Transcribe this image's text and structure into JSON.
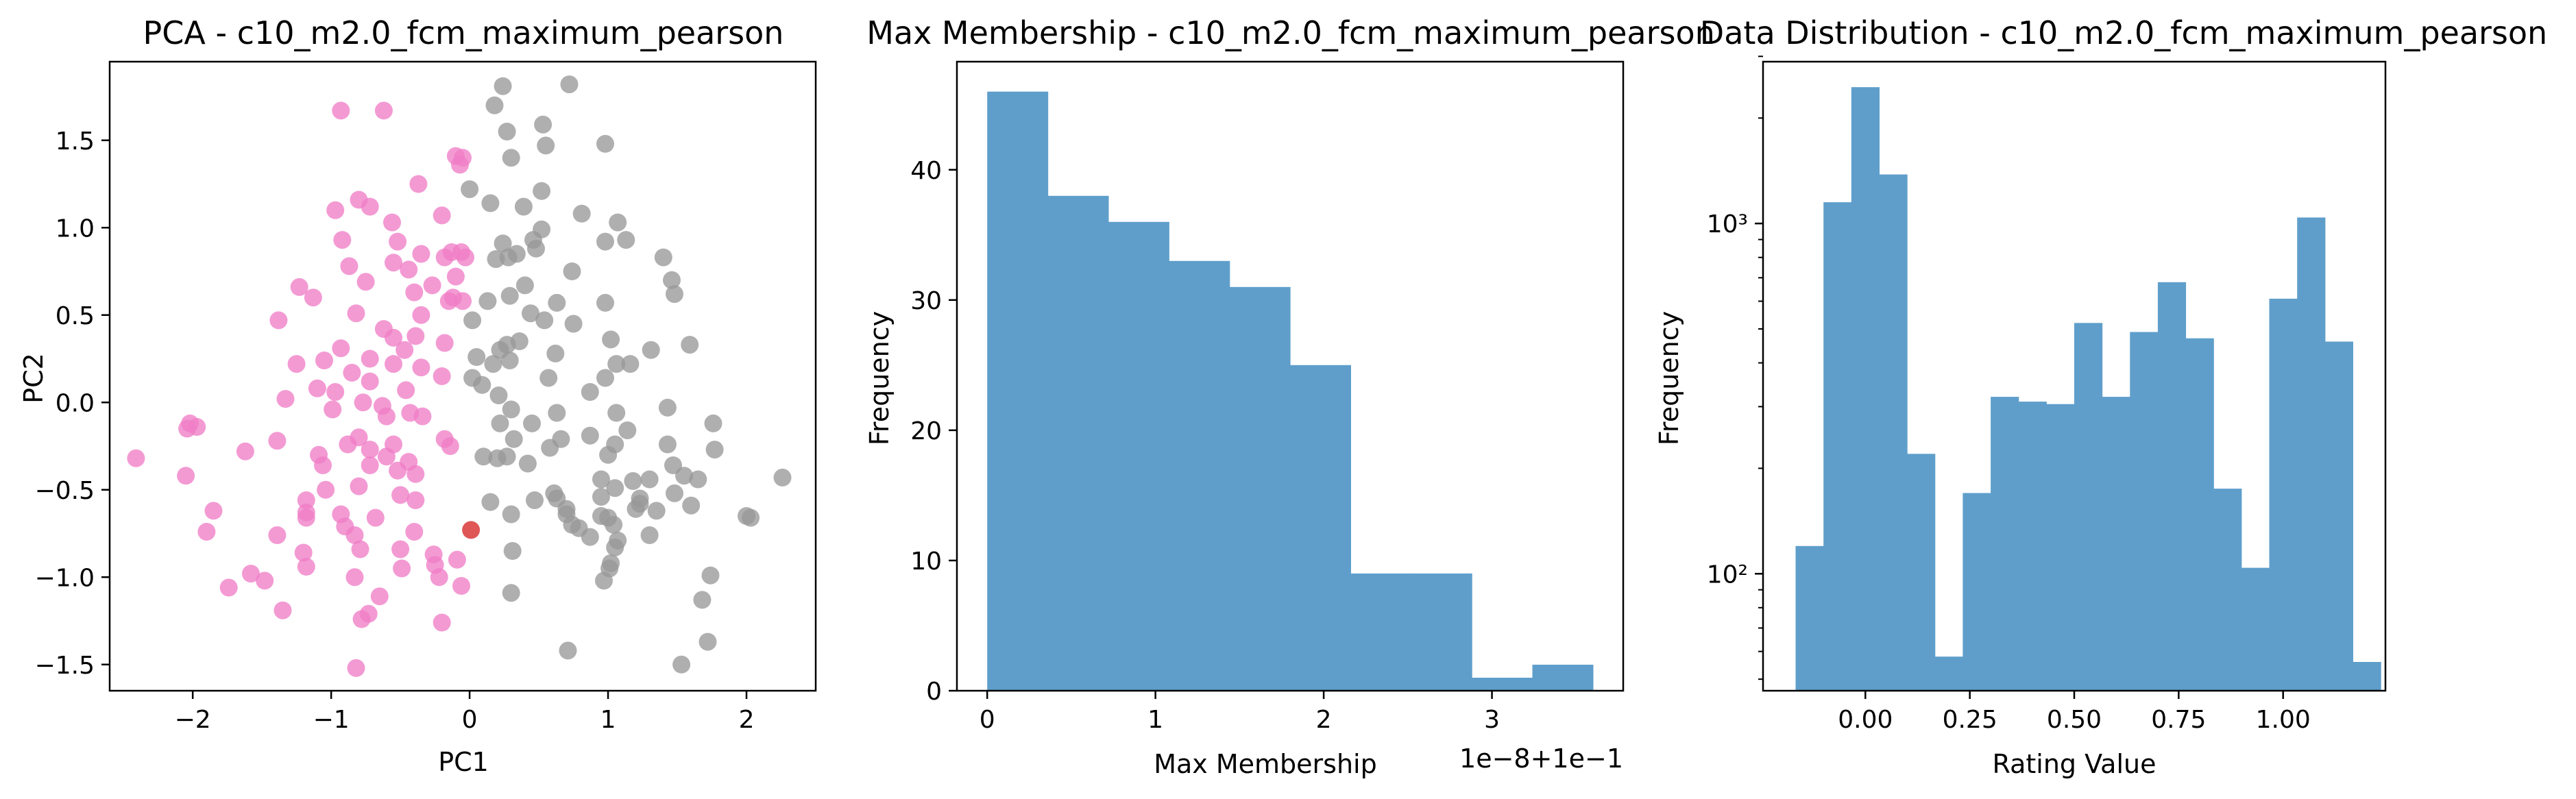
{
  "chart_data": [
    {
      "type": "scatter",
      "title": "PCA - c10_m2.0_fcm_maximum_pearson",
      "xlabel": "PC1",
      "ylabel": "PC2",
      "xlim": [
        -2.6,
        2.5
      ],
      "ylim": [
        -1.65,
        1.95
      ],
      "xticks": [
        -2,
        -1,
        0,
        1,
        2
      ],
      "xtick_labels": [
        "−2",
        "−1",
        "0",
        "1",
        "2"
      ],
      "yticks": [
        -1.5,
        -1.0,
        -0.5,
        0.0,
        0.5,
        1.0,
        1.5
      ],
      "ytick_labels": [
        "−1.5",
        "−1.0",
        "−0.5",
        "0.0",
        "0.5",
        "1.0",
        "1.5"
      ],
      "series": [
        {
          "color": "#f07dc6",
          "points": [
            [
              -0.93,
              1.67
            ],
            [
              -0.62,
              1.67
            ],
            [
              -0.1,
              1.41
            ],
            [
              -0.05,
              1.4
            ],
            [
              -0.07,
              1.36
            ],
            [
              -0.37,
              1.25
            ],
            [
              -0.97,
              1.1
            ],
            [
              -0.8,
              1.16
            ],
            [
              -0.72,
              1.12
            ],
            [
              -0.56,
              1.03
            ],
            [
              -0.2,
              1.07
            ],
            [
              -0.92,
              0.93
            ],
            [
              -0.52,
              0.92
            ],
            [
              -0.03,
              0.83
            ],
            [
              -0.18,
              0.83
            ],
            [
              -0.35,
              0.85
            ],
            [
              -0.55,
              0.8
            ],
            [
              -0.13,
              0.86
            ],
            [
              -0.06,
              0.86
            ],
            [
              -0.1,
              0.72
            ],
            [
              -0.87,
              0.78
            ],
            [
              -0.44,
              0.76
            ],
            [
              -1.23,
              0.66
            ],
            [
              -1.13,
              0.6
            ],
            [
              -0.75,
              0.69
            ],
            [
              -0.27,
              0.67
            ],
            [
              -0.4,
              0.63
            ],
            [
              -0.12,
              0.6
            ],
            [
              -0.82,
              0.51
            ],
            [
              -0.15,
              0.58
            ],
            [
              -0.05,
              0.58
            ],
            [
              -0.35,
              0.5
            ],
            [
              -0.62,
              0.42
            ],
            [
              -1.38,
              0.47
            ],
            [
              -0.55,
              0.37
            ],
            [
              -0.39,
              0.38
            ],
            [
              -0.18,
              0.34
            ],
            [
              -0.47,
              0.3
            ],
            [
              -0.93,
              0.31
            ],
            [
              -1.05,
              0.24
            ],
            [
              -0.72,
              0.25
            ],
            [
              -0.55,
              0.22
            ],
            [
              -1.25,
              0.22
            ],
            [
              -0.35,
              0.2
            ],
            [
              -0.2,
              0.15
            ],
            [
              -0.85,
              0.17
            ],
            [
              -0.72,
              0.12
            ],
            [
              -1.1,
              0.08
            ],
            [
              -0.97,
              0.06
            ],
            [
              -0.46,
              0.07
            ],
            [
              -1.33,
              0.02
            ],
            [
              -0.77,
              0.0
            ],
            [
              -0.63,
              -0.02
            ],
            [
              -0.99,
              -0.04
            ],
            [
              -0.43,
              -0.06
            ],
            [
              -2.02,
              -0.12
            ],
            [
              -2.04,
              -0.15
            ],
            [
              -1.97,
              -0.14
            ],
            [
              -0.6,
              -0.08
            ],
            [
              -0.34,
              -0.08
            ],
            [
              -1.39,
              -0.22
            ],
            [
              -1.62,
              -0.28
            ],
            [
              -0.8,
              -0.2
            ],
            [
              -0.88,
              -0.24
            ],
            [
              -0.72,
              -0.27
            ],
            [
              -0.55,
              -0.24
            ],
            [
              -0.18,
              -0.21
            ],
            [
              -0.14,
              -0.25
            ],
            [
              -2.41,
              -0.32
            ],
            [
              -1.09,
              -0.3
            ],
            [
              -0.6,
              -0.31
            ],
            [
              -0.44,
              -0.34
            ],
            [
              -0.39,
              -0.41
            ],
            [
              -2.05,
              -0.42
            ],
            [
              -1.06,
              -0.36
            ],
            [
              -0.72,
              -0.36
            ],
            [
              -0.52,
              -0.39
            ],
            [
              -1.85,
              -0.62
            ],
            [
              -0.8,
              -0.48
            ],
            [
              -1.04,
              -0.5
            ],
            [
              -0.5,
              -0.53
            ],
            [
              -1.18,
              -0.56
            ],
            [
              -0.39,
              -0.56
            ],
            [
              -1.18,
              -0.63
            ],
            [
              -1.18,
              -0.66
            ],
            [
              -0.93,
              -0.64
            ],
            [
              -0.68,
              -0.66
            ],
            [
              -1.9,
              -0.74
            ],
            [
              -0.9,
              -0.71
            ],
            [
              -1.39,
              -0.76
            ],
            [
              -0.4,
              -0.74
            ],
            [
              -0.83,
              -0.76
            ],
            [
              -1.2,
              -0.86
            ],
            [
              -0.79,
              -0.84
            ],
            [
              -0.5,
              -0.84
            ],
            [
              -0.26,
              -0.87
            ],
            [
              -0.09,
              -0.9
            ],
            [
              -1.18,
              -0.94
            ],
            [
              -0.25,
              -0.93
            ],
            [
              -0.49,
              -0.95
            ],
            [
              -1.58,
              -0.98
            ],
            [
              -1.48,
              -1.02
            ],
            [
              -0.83,
              -1.0
            ],
            [
              -0.22,
              -1.0
            ],
            [
              -1.74,
              -1.06
            ],
            [
              -0.06,
              -1.05
            ],
            [
              -0.65,
              -1.11
            ],
            [
              -1.35,
              -1.19
            ],
            [
              -0.73,
              -1.21
            ],
            [
              -0.78,
              -1.24
            ],
            [
              -0.2,
              -1.26
            ],
            [
              -0.82,
              -1.52
            ]
          ]
        },
        {
          "color": "#999999",
          "points": [
            [
              0.24,
              1.81
            ],
            [
              0.72,
              1.82
            ],
            [
              0.18,
              1.7
            ],
            [
              0.53,
              1.59
            ],
            [
              0.27,
              1.55
            ],
            [
              0.3,
              1.4
            ],
            [
              0.55,
              1.47
            ],
            [
              0.98,
              1.48
            ],
            [
              0.0,
              1.22
            ],
            [
              0.52,
              1.21
            ],
            [
              0.15,
              1.14
            ],
            [
              0.39,
              1.12
            ],
            [
              0.81,
              1.08
            ],
            [
              1.07,
              1.03
            ],
            [
              0.52,
              0.99
            ],
            [
              0.24,
              0.91
            ],
            [
              0.46,
              0.93
            ],
            [
              1.13,
              0.93
            ],
            [
              0.98,
              0.92
            ],
            [
              0.34,
              0.85
            ],
            [
              0.28,
              0.83
            ],
            [
              0.48,
              0.88
            ],
            [
              0.19,
              0.82
            ],
            [
              1.4,
              0.83
            ],
            [
              0.74,
              0.75
            ],
            [
              1.46,
              0.7
            ],
            [
              0.4,
              0.67
            ],
            [
              0.63,
              0.57
            ],
            [
              0.29,
              0.61
            ],
            [
              1.48,
              0.62
            ],
            [
              0.13,
              0.58
            ],
            [
              0.98,
              0.57
            ],
            [
              0.44,
              0.51
            ],
            [
              0.02,
              0.47
            ],
            [
              0.54,
              0.47
            ],
            [
              0.75,
              0.45
            ],
            [
              0.27,
              0.33
            ],
            [
              1.02,
              0.36
            ],
            [
              0.36,
              0.35
            ],
            [
              0.22,
              0.3
            ],
            [
              1.31,
              0.3
            ],
            [
              0.62,
              0.28
            ],
            [
              0.05,
              0.26
            ],
            [
              0.29,
              0.24
            ],
            [
              0.17,
              0.22
            ],
            [
              1.59,
              0.33
            ],
            [
              1.06,
              0.22
            ],
            [
              1.16,
              0.22
            ],
            [
              0.02,
              0.14
            ],
            [
              0.57,
              0.14
            ],
            [
              0.98,
              0.14
            ],
            [
              0.09,
              0.1
            ],
            [
              0.87,
              0.06
            ],
            [
              0.21,
              0.04
            ],
            [
              0.3,
              -0.04
            ],
            [
              1.43,
              -0.03
            ],
            [
              0.63,
              -0.06
            ],
            [
              1.06,
              -0.06
            ],
            [
              0.45,
              -0.12
            ],
            [
              0.22,
              -0.12
            ],
            [
              1.76,
              -0.12
            ],
            [
              1.14,
              -0.16
            ],
            [
              0.87,
              -0.19
            ],
            [
              0.32,
              -0.21
            ],
            [
              0.66,
              -0.21
            ],
            [
              1.43,
              -0.24
            ],
            [
              1.05,
              -0.24
            ],
            [
              0.58,
              -0.26
            ],
            [
              1.77,
              -0.27
            ],
            [
              0.27,
              -0.31
            ],
            [
              0.1,
              -0.31
            ],
            [
              1.0,
              -0.3
            ],
            [
              0.2,
              -0.32
            ],
            [
              0.42,
              -0.35
            ],
            [
              2.26,
              -0.43
            ],
            [
              1.47,
              -0.36
            ],
            [
              1.55,
              -0.42
            ],
            [
              1.3,
              -0.44
            ],
            [
              0.95,
              -0.44
            ],
            [
              1.65,
              -0.44
            ],
            [
              1.18,
              -0.45
            ],
            [
              1.05,
              -0.49
            ],
            [
              0.61,
              -0.52
            ],
            [
              0.63,
              -0.55
            ],
            [
              0.95,
              -0.54
            ],
            [
              1.48,
              -0.52
            ],
            [
              1.23,
              -0.55
            ],
            [
              0.15,
              -0.57
            ],
            [
              0.47,
              -0.56
            ],
            [
              1.23,
              -0.58
            ],
            [
              1.6,
              -0.59
            ],
            [
              0.7,
              -0.61
            ],
            [
              1.35,
              -0.62
            ],
            [
              1.2,
              -0.61
            ],
            [
              2.0,
              -0.65
            ],
            [
              2.03,
              -0.66
            ],
            [
              0.3,
              -0.64
            ],
            [
              0.7,
              -0.64
            ],
            [
              0.95,
              -0.65
            ],
            [
              1.0,
              -0.66
            ],
            [
              1.04,
              -0.7
            ],
            [
              0.74,
              -0.7
            ],
            [
              0.79,
              -0.72
            ],
            [
              1.3,
              -0.76
            ],
            [
              0.87,
              -0.77
            ],
            [
              1.07,
              -0.79
            ],
            [
              0.31,
              -0.85
            ],
            [
              1.05,
              -0.83
            ],
            [
              1.02,
              -0.92
            ],
            [
              1.01,
              -0.95
            ],
            [
              0.97,
              -1.02
            ],
            [
              1.74,
              -0.99
            ],
            [
              0.3,
              -1.09
            ],
            [
              1.68,
              -1.13
            ],
            [
              0.71,
              -1.42
            ],
            [
              1.72,
              -1.37
            ],
            [
              1.53,
              -1.5
            ]
          ]
        },
        {
          "color": "#d62728",
          "points": [
            [
              0.01,
              -0.73
            ]
          ]
        }
      ]
    },
    {
      "type": "bar",
      "title": "Max Membership - c10_m2.0_fcm_maximum_pearson",
      "xlabel": "Max Membership",
      "ylabel": "Frequency",
      "x_offset_label": "1e−8+1e−1",
      "xlim": [
        -0.18,
        3.78
      ],
      "ylim": [
        0,
        48.3
      ],
      "xticks": [
        0,
        1,
        2,
        3
      ],
      "yticks": [
        0,
        10,
        20,
        30,
        40
      ],
      "color": "#5f9ecb",
      "bins": [
        {
          "start": 0.0,
          "end": 0.36,
          "value": 46
        },
        {
          "start": 0.36,
          "end": 0.72,
          "value": 38
        },
        {
          "start": 0.72,
          "end": 1.08,
          "value": 36
        },
        {
          "start": 1.08,
          "end": 1.44,
          "value": 33
        },
        {
          "start": 1.44,
          "end": 1.8,
          "value": 31
        },
        {
          "start": 1.8,
          "end": 2.16,
          "value": 25
        },
        {
          "start": 2.16,
          "end": 2.52,
          "value": 9
        },
        {
          "start": 2.52,
          "end": 2.88,
          "value": 9
        },
        {
          "start": 2.88,
          "end": 3.24,
          "value": 1
        },
        {
          "start": 3.24,
          "end": 3.6,
          "value": 2
        }
      ]
    },
    {
      "type": "bar",
      "title": "Data Distribution - c10_m2.0_fcm_maximum_pearson",
      "xlabel": "Rating Value",
      "ylabel": "Frequency",
      "yscale": "log",
      "xlim": [
        -0.245,
        1.245
      ],
      "ylim_log10": [
        1.666,
        3.462
      ],
      "xticks": [
        0.0,
        0.25,
        0.5,
        0.75,
        1.0
      ],
      "xtick_labels": [
        "0.00",
        "0.25",
        "0.50",
        "0.75",
        "1.00"
      ],
      "yticks_major": [
        100,
        1000
      ],
      "ytick_labels": [
        "10²",
        "10³"
      ],
      "yticks_minor": [
        50,
        60,
        70,
        80,
        90,
        200,
        300,
        400,
        500,
        600,
        700,
        800,
        900,
        2000,
        3000
      ],
      "color": "#5f9ecb",
      "bins_start": -0.167,
      "bin_width": 0.0667,
      "values": [
        120,
        1150,
        2450,
        1380,
        220,
        58,
        170,
        320,
        310,
        305,
        520,
        320,
        490,
        680,
        470,
        175,
        104,
        610,
        1040,
        460,
        56
      ]
    }
  ]
}
